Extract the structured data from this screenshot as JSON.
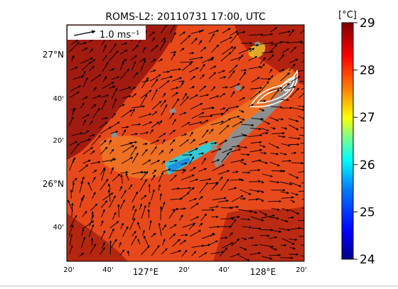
{
  "title": "ROMS-L2: 20110731 17:00, UTC",
  "scale_arrow_label": "1.0 ms⁻¹",
  "colorbar": {
    "unit_label": "[°C]",
    "ticks": [
      "29",
      "28",
      "27",
      "26",
      "25",
      "24"
    ],
    "range": [
      24,
      29
    ],
    "colors": [
      "#00008c",
      "#0000ff",
      "#0080ff",
      "#00ffff",
      "#80ff80",
      "#ffff00",
      "#ff8000",
      "#ff0000",
      "#800000"
    ]
  },
  "lat_labels": [
    "27°N",
    "40'",
    "20'",
    "26°N",
    "40'"
  ],
  "lon_labels": [
    "20'",
    "40'",
    "127°E",
    "20'",
    "40'",
    "128°E",
    "20'"
  ],
  "colors": {
    "warm_sea": "#e8491b",
    "dark_sea": "#a11b11",
    "upwelling_cyan": "#35c9d3",
    "land": "#8f8f8f"
  }
}
